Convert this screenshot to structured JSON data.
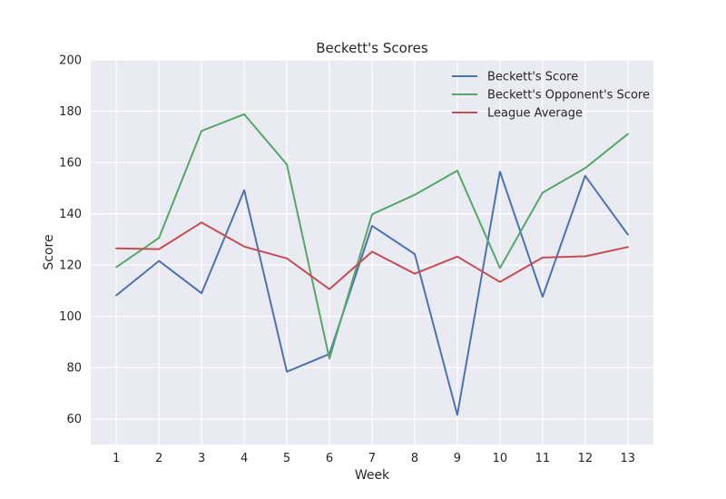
{
  "chart_data": {
    "type": "line",
    "title": "Beckett's Scores",
    "xlabel": "Week",
    "ylabel": "Score",
    "x": [
      1,
      2,
      3,
      4,
      5,
      6,
      7,
      8,
      9,
      10,
      11,
      12,
      13
    ],
    "xlim": [
      0.4,
      13.6
    ],
    "ylim": [
      50,
      200
    ],
    "yticks": [
      60,
      80,
      100,
      120,
      140,
      160,
      180,
      200
    ],
    "grid": true,
    "legend_position": "top-right",
    "series": [
      {
        "name": "Beckett's Score",
        "color": "#4c72b0",
        "values": [
          108.2,
          121.6,
          109.0,
          149.2,
          78.4,
          85.3,
          135.3,
          124.3,
          61.6,
          156.4,
          107.6,
          154.8,
          131.9
        ]
      },
      {
        "name": "Beckett's Opponent's Score",
        "color": "#55a868",
        "values": [
          119.2,
          130.6,
          172.3,
          178.8,
          159.2,
          83.5,
          139.8,
          147.4,
          156.8,
          118.8,
          148.2,
          157.8,
          171.1
        ]
      },
      {
        "name": "League Average",
        "color": "#c44e52",
        "values": [
          126.5,
          126.2,
          136.6,
          127.2,
          122.6,
          110.6,
          125.2,
          116.6,
          123.3,
          113.4,
          122.9,
          123.4,
          127.0
        ]
      }
    ]
  }
}
